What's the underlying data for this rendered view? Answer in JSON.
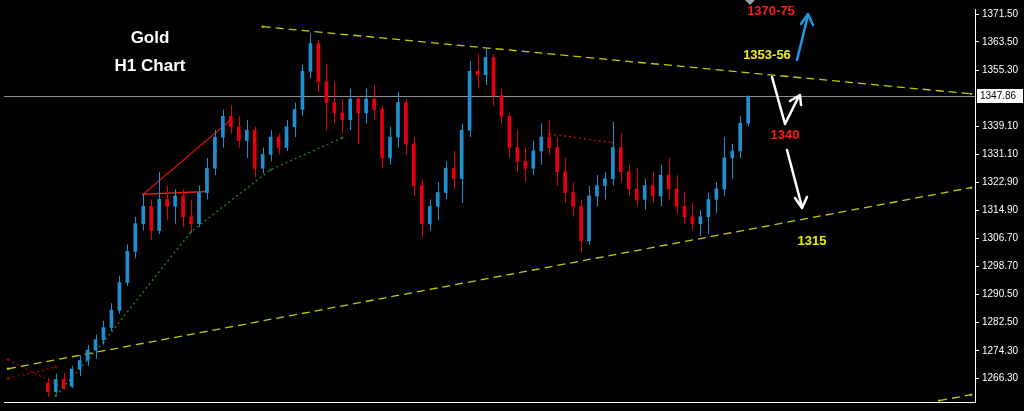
{
  "chart_data": {
    "type": "candlestick",
    "title": "Gold",
    "subtitle": "H1 Chart",
    "annotations": [
      "1370-75",
      "1353-56",
      "1340",
      "1315"
    ],
    "categories": [
      null,
      null,
      null,
      null,
      null,
      null,
      null,
      null,
      null,
      null,
      null,
      null,
      null,
      null,
      null,
      null,
      null,
      null,
      null,
      null,
      null,
      null,
      null,
      null,
      null,
      null,
      null,
      null,
      null,
      null,
      null,
      null,
      null,
      null,
      null,
      null,
      null,
      null,
      null,
      null,
      null,
      null,
      null,
      null,
      null,
      null,
      null,
      null,
      null,
      null,
      null,
      null,
      null,
      null,
      null,
      null,
      null,
      null,
      null,
      null,
      null,
      null,
      null,
      null,
      null,
      null,
      null,
      null,
      null,
      null,
      null,
      null,
      null,
      null,
      null,
      null,
      null,
      null,
      null,
      null,
      null,
      null,
      null,
      null,
      null,
      null,
      null,
      null,
      null,
      null,
      null,
      null,
      null,
      null,
      null,
      null,
      null,
      null,
      null,
      null,
      null,
      null,
      null,
      null,
      null,
      null,
      null,
      null,
      null,
      null,
      null,
      null,
      null,
      null,
      null,
      null,
      null,
      null,
      null,
      null,
      null,
      null
    ],
    "ylim": [
      1259.5,
      1373
    ],
    "yticks": [
      {
        "value": 1266.3,
        "label": "1266.30"
      },
      {
        "value": 1274.3,
        "label": "1274.30"
      },
      {
        "value": 1282.5,
        "label": "1282.50"
      },
      {
        "value": 1290.5,
        "label": "1290.50"
      },
      {
        "value": 1298.7,
        "label": "1298.70"
      },
      {
        "value": 1306.7,
        "label": "1306.70"
      },
      {
        "value": 1314.9,
        "label": "1314.90"
      },
      {
        "value": 1322.9,
        "label": "1322.90"
      },
      {
        "value": 1331.1,
        "label": "1331.10"
      },
      {
        "value": 1339.1,
        "label": "1339.10"
      },
      {
        "value": 1355.3,
        "label": "1355.30"
      },
      {
        "value": 1363.5,
        "label": "1363.50"
      },
      {
        "value": 1371.5,
        "label": "1371.50"
      }
    ],
    "tick_labels": "y",
    "ref_lines": [
      {
        "axis": "y",
        "value": 1347.86,
        "label": "1347.86",
        "color": "#8a9096"
      }
    ],
    "series": [
      {
        "type": "line",
        "color": "#c8c800",
        "line_style": "dashed",
        "values": [
          null,
          null,
          null,
          null,
          null,
          null,
          null,
          null,
          null,
          null,
          null,
          null,
          null,
          null,
          null,
          null,
          null,
          null,
          null,
          null,
          null,
          null,
          null,
          null,
          null,
          null,
          null,
          null,
          null,
          null,
          null,
          null,
          1367.9,
          null,
          null,
          null,
          null,
          null,
          null,
          null,
          null,
          null,
          null,
          null,
          null,
          null,
          null,
          null,
          null,
          null,
          null,
          null,
          null,
          null,
          null,
          null,
          null,
          null,
          null,
          null,
          null,
          null,
          null,
          null,
          null,
          null,
          null,
          null,
          null,
          null,
          null,
          null,
          null,
          null,
          null,
          null,
          null,
          null,
          null,
          null,
          null,
          null,
          null,
          null,
          null,
          null,
          null,
          null,
          null,
          null,
          null,
          null,
          null,
          null,
          null,
          null,
          null,
          null,
          null,
          null,
          null,
          null,
          null,
          null,
          null,
          null,
          null,
          null,
          null,
          null,
          null,
          null,
          null,
          null,
          null,
          null,
          null,
          null,
          null,
          null,
          null,
          1348.5
        ]
      },
      {
        "type": "line",
        "color": "#c8c800",
        "line_style": "dashed",
        "values": [
          1269.1,
          null,
          null,
          null,
          null,
          null,
          null,
          null,
          null,
          null,
          null,
          null,
          null,
          null,
          null,
          null,
          null,
          null,
          null,
          null,
          null,
          null,
          null,
          null,
          null,
          null,
          null,
          null,
          null,
          null,
          null,
          null,
          null,
          null,
          null,
          null,
          null,
          null,
          null,
          null,
          null,
          null,
          null,
          null,
          null,
          null,
          null,
          null,
          null,
          null,
          null,
          null,
          null,
          null,
          null,
          null,
          null,
          null,
          null,
          null,
          null,
          null,
          null,
          null,
          null,
          null,
          null,
          null,
          null,
          null,
          null,
          null,
          null,
          null,
          null,
          null,
          null,
          null,
          null,
          null,
          null,
          null,
          null,
          null,
          null,
          null,
          null,
          null,
          null,
          null,
          null,
          null,
          null,
          null,
          null,
          null,
          null,
          null,
          null,
          null,
          null,
          null,
          null,
          null,
          null,
          null,
          null,
          null,
          null,
          null,
          null,
          null,
          null,
          null,
          null,
          null,
          null,
          null,
          null,
          null,
          null,
          1321.4
        ]
      },
      {
        "type": "line",
        "color": "#c8c800",
        "line_style": "dashed",
        "values": [
          null,
          null,
          null,
          null,
          null,
          null,
          null,
          null,
          null,
          null,
          null,
          null,
          null,
          null,
          null,
          null,
          null,
          null,
          null,
          null,
          null,
          null,
          null,
          null,
          null,
          null,
          null,
          null,
          null,
          null,
          null,
          null,
          null,
          null,
          null,
          null,
          null,
          null,
          null,
          null,
          null,
          null,
          null,
          null,
          null,
          null,
          null,
          null,
          null,
          null,
          null,
          null,
          null,
          null,
          null,
          null,
          null,
          null,
          null,
          null,
          null,
          null,
          null,
          null,
          null,
          null,
          null,
          null,
          null,
          null,
          null,
          null,
          null,
          null,
          null,
          null,
          null,
          null,
          null,
          null,
          null,
          null,
          null,
          null,
          null,
          null,
          null,
          null,
          null,
          null,
          null,
          null,
          null,
          null,
          null,
          null,
          null,
          null,
          null,
          null,
          null,
          null,
          null,
          null,
          null,
          null,
          null,
          null,
          null,
          null,
          null,
          null,
          null,
          null,
          null,
          null,
          null,
          1259.9,
          null,
          null,
          null,
          1261.6
        ]
      },
      {
        "type": "line",
        "color": "#1e8a1e",
        "line_style": "dotted",
        "values": [
          null,
          null,
          null,
          null,
          null,
          null,
          1261.3,
          null,
          null,
          null,
          null,
          null,
          1276.8,
          null,
          null,
          null,
          null,
          null,
          null,
          null,
          null,
          null,
          null,
          1308.7,
          null,
          null,
          null,
          null,
          null,
          null,
          null,
          null,
          null,
          1326.6,
          null,
          null,
          null,
          null,
          null,
          null,
          null,
          null,
          1335.8,
          null,
          null,
          null,
          null,
          null,
          null,
          null,
          null,
          null,
          null,
          null,
          null,
          null,
          null,
          null,
          null,
          null,
          null,
          null,
          null,
          null,
          null,
          null,
          null,
          null,
          null,
          null,
          null,
          null,
          null,
          null,
          null,
          null,
          null,
          null,
          null,
          null,
          null,
          null,
          null,
          null,
          null,
          null,
          null,
          null,
          null,
          null,
          null,
          null,
          null,
          null,
          null,
          null,
          null,
          null,
          null,
          null,
          null,
          null,
          null,
          null,
          null,
          null,
          null,
          null,
          null,
          null,
          null,
          null,
          null,
          null,
          null,
          null,
          null,
          null,
          null,
          null,
          null,
          null
        ]
      },
      {
        "type": "line",
        "color": "#d01010",
        "line_style": "solid",
        "values": [
          null,
          null,
          null,
          null,
          null,
          null,
          null,
          null,
          null,
          null,
          null,
          null,
          null,
          null,
          null,
          null,
          null,
          1319.5,
          null,
          null,
          null,
          null,
          null,
          null,
          null,
          null,
          null,
          null,
          1341,
          null,
          null,
          null,
          null,
          null,
          null,
          null,
          null,
          null,
          null,
          null,
          null,
          null,
          null,
          null,
          null,
          null,
          null,
          null,
          null,
          null,
          null,
          null,
          null,
          null,
          null,
          null,
          null,
          null,
          null,
          null,
          null,
          null,
          null,
          null,
          null,
          null,
          null,
          null,
          null,
          null,
          null,
          null,
          null,
          null,
          null,
          null,
          null,
          null,
          null,
          null,
          null,
          null,
          null,
          null,
          null,
          null,
          null,
          null,
          null,
          null,
          null,
          null,
          null,
          null,
          null,
          null,
          null,
          null,
          null,
          null,
          null,
          null,
          null,
          null,
          null,
          null,
          null,
          null,
          null,
          null,
          null,
          null,
          null,
          null,
          null,
          null,
          null,
          null,
          null,
          null,
          null,
          null
        ]
      },
      {
        "type": "line",
        "color": "#f01818",
        "line_style": "solid",
        "values": [
          null,
          null,
          null,
          null,
          null,
          null,
          null,
          null,
          null,
          null,
          null,
          null,
          null,
          null,
          null,
          null,
          null,
          1319.5,
          null,
          null,
          null,
          null,
          null,
          null,
          null,
          1320.3,
          null,
          null,
          null,
          null,
          null,
          null,
          null,
          null,
          null,
          null,
          null,
          null,
          null,
          null,
          null,
          null,
          null,
          null,
          null,
          null,
          null,
          null,
          null,
          null,
          null,
          null,
          null,
          null,
          null,
          null,
          null,
          null,
          null,
          null,
          null,
          null,
          null,
          null,
          null,
          null,
          null,
          null,
          null,
          null,
          null,
          null,
          null,
          null,
          null,
          null,
          null,
          null,
          null,
          null,
          null,
          null,
          null,
          null,
          null,
          null,
          null,
          null,
          null,
          null,
          null,
          null,
          null,
          null,
          null,
          null,
          null,
          null,
          null,
          null,
          null,
          null,
          null,
          null,
          null,
          null,
          null,
          null,
          null,
          null,
          null,
          null,
          null,
          null,
          null,
          null,
          null,
          null,
          null,
          null,
          null,
          null
        ]
      },
      {
        "type": "line",
        "color": "#c01010",
        "line_style": "dotted",
        "values": [
          null,
          null,
          null,
          null,
          null,
          null,
          null,
          null,
          null,
          null,
          null,
          null,
          null,
          null,
          null,
          null,
          null,
          null,
          null,
          null,
          null,
          null,
          null,
          null,
          null,
          null,
          null,
          null,
          null,
          null,
          null,
          null,
          null,
          null,
          null,
          null,
          null,
          null,
          null,
          null,
          null,
          null,
          null,
          null,
          null,
          null,
          null,
          null,
          null,
          null,
          null,
          null,
          null,
          null,
          null,
          null,
          null,
          null,
          null,
          null,
          null,
          null,
          null,
          null,
          null,
          null,
          null,
          null,
          1336.9,
          null,
          null,
          null,
          null,
          null,
          null,
          null,
          1334.4,
          null,
          null,
          null,
          null,
          null,
          null,
          null,
          null,
          null,
          null,
          null,
          null,
          null,
          null,
          null,
          null,
          null,
          null,
          null,
          null,
          null,
          null,
          null,
          null,
          null,
          null,
          null,
          null,
          null,
          null,
          null,
          null,
          null,
          null,
          null,
          null,
          null,
          null,
          null,
          null,
          null,
          null,
          null,
          null,
          null
        ]
      },
      {
        "type": "line",
        "color": "#b00000",
        "line_style": "dotted",
        "values": [
          1271.8,
          null,
          null,
          null,
          null,
          null,
          null,
          1263.5,
          null,
          null,
          null,
          null,
          null,
          null,
          null,
          null,
          null,
          null,
          null,
          null,
          null,
          null,
          null,
          null,
          null,
          null,
          null,
          null,
          null,
          null,
          null,
          null,
          null,
          null,
          null,
          null,
          null,
          null,
          null,
          null,
          null,
          null,
          null,
          null,
          null,
          null,
          null,
          null,
          null,
          null,
          null,
          null,
          null,
          null,
          null,
          null,
          null,
          null,
          null,
          null,
          null,
          null,
          null,
          null,
          null,
          null,
          null,
          null,
          null,
          null,
          null,
          null,
          null,
          null,
          null,
          null,
          null,
          null,
          null,
          null,
          null,
          null,
          null,
          null,
          null,
          null,
          null,
          null,
          null,
          null,
          null,
          null,
          null,
          null,
          null,
          null,
          null,
          null,
          null,
          null,
          null,
          null,
          null,
          null,
          null,
          null,
          null,
          null,
          null,
          null,
          null,
          null,
          null,
          null,
          null,
          null,
          null,
          null,
          null,
          null,
          null,
          null
        ]
      },
      {
        "type": "line",
        "color": "#b00000",
        "line_style": "dotted",
        "values": [
          1266.3,
          null,
          null,
          null,
          null,
          null,
          1269.6,
          null,
          null,
          null,
          null,
          null,
          null,
          null,
          null,
          null,
          null,
          null,
          null,
          null,
          null,
          null,
          null,
          null,
          null,
          null,
          null,
          null,
          null,
          null,
          null,
          null,
          null,
          null,
          null,
          null,
          null,
          null,
          null,
          null,
          null,
          null,
          null,
          null,
          null,
          null,
          null,
          null,
          null,
          null,
          null,
          null,
          null,
          null,
          null,
          null,
          null,
          null,
          null,
          null,
          null,
          null,
          null,
          null,
          null,
          null,
          null,
          null,
          null,
          null,
          null,
          null,
          null,
          null,
          null,
          null,
          null,
          null,
          null,
          null,
          null,
          null,
          null,
          null,
          null,
          null,
          null,
          null,
          null,
          null,
          null,
          null,
          null,
          null,
          null,
          null,
          null,
          null,
          null,
          null,
          null,
          null,
          null,
          null,
          null,
          null,
          null,
          null,
          null,
          null,
          null,
          null,
          null,
          null,
          null,
          null,
          null,
          null,
          null,
          null,
          null,
          null
        ]
      },
      {
        "ohlc": [
          null,
          null,
          null,
          null,
          null,
          [
            1265,
            1266.5,
            1261,
            1262.5
          ],
          [
            1262.5,
            1267.7,
            1262,
            1266
          ],
          [
            1266,
            1268,
            1263,
            1264
          ],
          [
            1264,
            1270,
            1263.5,
            1269
          ],
          [
            1269,
            1273,
            1267,
            1271.5
          ],
          [
            1271.5,
            1276,
            1270,
            1274.5
          ],
          [
            1274.5,
            1279,
            1272,
            1277.5
          ],
          [
            1277.5,
            1283,
            1276,
            1281
          ],
          [
            1281,
            1288,
            1280,
            1286
          ],
          [
            1286,
            1296,
            1285,
            1294
          ],
          [
            1294,
            1305,
            1293,
            1303
          ],
          [
            1303,
            1313,
            1301,
            1311
          ],
          [
            1311,
            1319.5,
            1309,
            1316
          ],
          [
            1316,
            1318,
            1306.4,
            1309
          ],
          [
            1309,
            1326,
            1308,
            1318
          ],
          [
            1318,
            1322,
            1312,
            1316
          ],
          [
            1316,
            1321,
            1311,
            1319
          ],
          [
            1319,
            1321,
            1310,
            1313
          ],
          [
            1313,
            1318,
            1308.7,
            1311
          ],
          [
            1311,
            1322,
            1310,
            1320
          ],
          [
            1320,
            1330,
            1318,
            1327
          ],
          [
            1327,
            1338,
            1325,
            1336
          ],
          [
            1336,
            1344,
            1333,
            1342
          ],
          [
            1342,
            1345.2,
            1337,
            1339
          ],
          [
            1339,
            1342,
            1333,
            1335
          ],
          [
            1335,
            1341,
            1330,
            1338
          ],
          [
            1338,
            1339,
            1324.4,
            1327
          ],
          [
            1327,
            1333,
            1325.5,
            1331
          ],
          [
            1331,
            1338,
            1329,
            1336
          ],
          [
            1336,
            1337,
            1331,
            1333
          ],
          [
            1333,
            1341,
            1332,
            1339
          ],
          [
            1339,
            1346,
            1336,
            1344
          ],
          [
            1344,
            1357,
            1342,
            1355
          ],
          [
            1355,
            1366,
            1353,
            1363
          ],
          [
            1363,
            1364,
            1349,
            1352
          ],
          [
            1352,
            1357,
            1338,
            1346
          ],
          [
            1346,
            1352,
            1340,
            1343
          ],
          [
            1343,
            1347,
            1337,
            1341
          ],
          [
            1341,
            1350,
            1338,
            1347
          ],
          [
            1347,
            1348,
            1334,
            1343
          ],
          [
            1343,
            1350,
            1340,
            1347
          ],
          [
            1347,
            1351,
            1341,
            1344
          ],
          [
            1344,
            1345,
            1327,
            1330
          ],
          [
            1330,
            1339,
            1328,
            1336
          ],
          [
            1336,
            1349,
            1333,
            1346
          ],
          [
            1346,
            1347,
            1331,
            1334
          ],
          [
            1334,
            1336,
            1319,
            1322
          ],
          [
            1322,
            1324,
            1307,
            1311
          ],
          [
            1311,
            1318,
            1309,
            1316
          ],
          [
            1316,
            1323,
            1312,
            1320
          ],
          [
            1320,
            1329,
            1318,
            1327
          ],
          [
            1327,
            1332,
            1321,
            1324
          ],
          [
            1324,
            1340,
            1317,
            1338
          ],
          [
            1338,
            1358,
            1336,
            1355
          ],
          [
            1355,
            1360,
            1350,
            1354
          ],
          [
            1354,
            1362,
            1351,
            1359
          ],
          [
            1359,
            1360,
            1345,
            1348
          ],
          [
            1348,
            1350,
            1340,
            1342
          ],
          [
            1342,
            1343,
            1330,
            1333
          ],
          [
            1333,
            1338,
            1326,
            1329
          ],
          [
            1329,
            1333,
            1323,
            1327
          ],
          [
            1327,
            1335,
            1325,
            1332
          ],
          [
            1332,
            1340,
            1328,
            1336
          ],
          [
            1336,
            1341,
            1331,
            1333
          ],
          [
            1333,
            1336,
            1322,
            1326
          ],
          [
            1326,
            1330,
            1317,
            1320
          ],
          [
            1320,
            1323,
            1313,
            1316
          ],
          [
            1316,
            1318,
            1302.8,
            1306
          ],
          [
            1306,
            1322,
            1305,
            1319
          ],
          [
            1319,
            1325,
            1316,
            1322
          ],
          [
            1322,
            1326,
            1318,
            1324
          ],
          [
            1324,
            1340.5,
            1322,
            1333
          ],
          [
            1333,
            1337,
            1323,
            1326
          ],
          [
            1326,
            1328,
            1319,
            1321
          ],
          [
            1321,
            1327,
            1316,
            1318
          ],
          [
            1318,
            1324,
            1315,
            1322
          ],
          [
            1322,
            1326,
            1317,
            1319
          ],
          [
            1319,
            1328,
            1316,
            1325
          ],
          [
            1325,
            1330,
            1318,
            1321
          ],
          [
            1321,
            1325,
            1314,
            1316
          ],
          [
            1316,
            1320,
            1311,
            1313
          ],
          [
            1313,
            1317,
            1309,
            1311
          ],
          [
            1311,
            1315,
            1307.5,
            1313
          ],
          [
            1313,
            1320,
            1308,
            1318
          ],
          [
            1318,
            1323,
            1314,
            1321
          ],
          [
            1321,
            1336,
            1319,
            1330
          ],
          [
            1330,
            1334,
            1324,
            1332
          ],
          [
            1332,
            1342,
            1330,
            1340
          ],
          [
            1340,
            1347.86,
            1339,
            1347.86
          ],
          null,
          null,
          null,
          null,
          null,
          null,
          null,
          null,
          null,
          null,
          null,
          null,
          null,
          null,
          null,
          null,
          null,
          null,
          null,
          null,
          null,
          null,
          null,
          null,
          null,
          null,
          null,
          null
        ],
        "colors": [
          null,
          null,
          null,
          null,
          null,
          "#e4000f",
          "#1f8fd0",
          "#e4000f",
          "#1f8fd0",
          "#1f8fd0",
          "#1f8fd0",
          "#1f8fd0",
          "#1f8fd0",
          "#1f8fd0",
          "#1f8fd0",
          "#1f8fd0",
          "#1f8fd0",
          "#1f8fd0",
          "#e4000f",
          "#1f8fd0",
          "#e4000f",
          "#1f8fd0",
          "#e4000f",
          "#e4000f",
          "#1f8fd0",
          "#1f8fd0",
          "#1f8fd0",
          "#1f8fd0",
          "#e4000f",
          "#e4000f",
          "#1f8fd0",
          "#e4000f",
          "#1f8fd0",
          "#1f8fd0",
          "#e4000f",
          "#1f8fd0",
          "#1f8fd0",
          "#1f8fd0",
          "#1f8fd0",
          "#e4000f",
          "#e4000f",
          "#e4000f",
          "#e4000f",
          "#1f8fd0",
          "#e4000f",
          "#1f8fd0",
          "#e4000f",
          "#e4000f",
          "#1f8fd0",
          "#1f8fd0",
          "#e4000f",
          "#e4000f",
          "#e4000f",
          "#1f8fd0",
          "#1f8fd0",
          "#1f8fd0",
          "#e4000f",
          "#1f8fd0",
          "#1f8fd0",
          "#e4000f",
          "#1f8fd0",
          "#e4000f",
          "#e4000f",
          "#e4000f",
          "#e4000f",
          "#e4000f",
          "#1f8fd0",
          "#1f8fd0",
          "#e4000f",
          "#e4000f",
          "#e4000f",
          "#e4000f",
          "#e4000f",
          "#1f8fd0",
          "#1f8fd0",
          "#1f8fd0",
          "#1f8fd0",
          "#e4000f",
          "#e4000f",
          "#e4000f",
          "#1f8fd0",
          "#e4000f",
          "#1f8fd0",
          "#e4000f",
          "#e4000f",
          "#e4000f",
          "#e4000f",
          "#1f8fd0",
          "#1f8fd0",
          "#1f8fd0",
          "#1f8fd0",
          "#1f8fd0",
          "#1f8fd0",
          "#1f8fd0",
          null,
          null,
          null,
          null,
          null,
          null,
          null,
          null,
          null,
          null,
          null,
          null,
          null,
          null,
          null,
          null,
          null,
          null,
          null,
          null,
          null,
          null,
          null,
          null,
          null,
          null,
          null,
          null
        ]
      }
    ]
  }
}
